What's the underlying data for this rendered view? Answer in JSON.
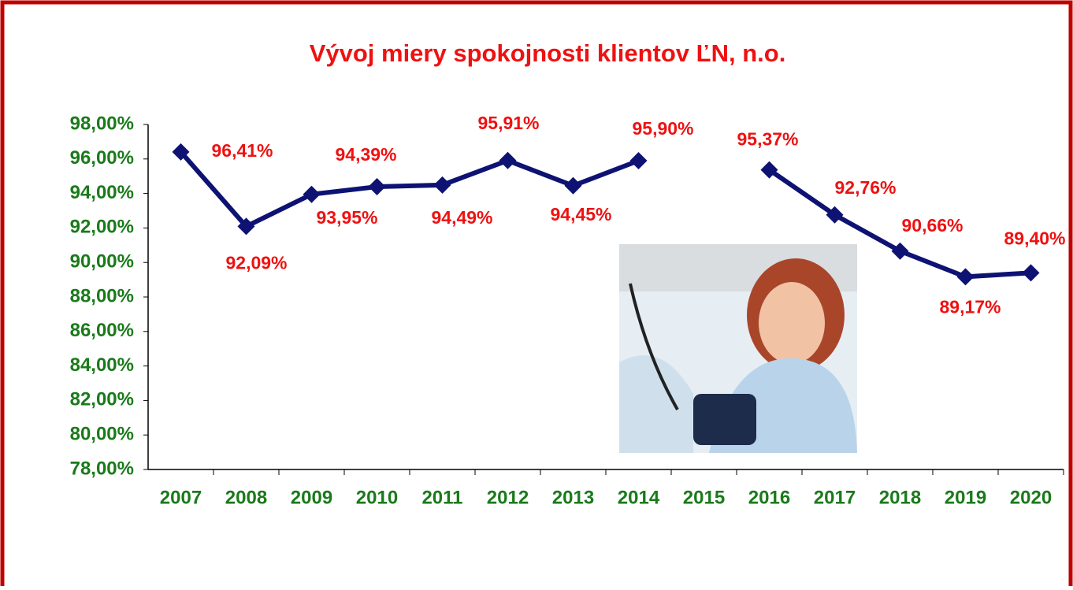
{
  "chart_data": {
    "type": "line",
    "title": "Vývoj miery spokojnosti klientov ĽN, n.o.",
    "categories": [
      "2007",
      "2008",
      "2009",
      "2010",
      "2011",
      "2012",
      "2013",
      "2014",
      "2015",
      "2016",
      "2017",
      "2018",
      "2019",
      "2020"
    ],
    "values": [
      96.41,
      92.09,
      93.95,
      94.39,
      94.49,
      95.91,
      94.45,
      95.9,
      null,
      95.37,
      92.76,
      90.66,
      89.17,
      89.4
    ],
    "value_labels": [
      "96,41%",
      "92,09%",
      "93,95%",
      "94,39%",
      "94,49%",
      "95,91%",
      "94,45%",
      "95,90%",
      null,
      "95,37%",
      "92,76%",
      "90,66%",
      "89,17%",
      "89,40%"
    ],
    "color": "#0d1273",
    "ylim": [
      78,
      98
    ],
    "yticks": [
      {
        "value": 78,
        "label": "78,00%"
      },
      {
        "value": 80,
        "label": "80,00%"
      },
      {
        "value": 82,
        "label": "82,00%"
      },
      {
        "value": 84,
        "label": "84,00%"
      },
      {
        "value": 86,
        "label": "86,00%"
      },
      {
        "value": 88,
        "label": "88,00%"
      },
      {
        "value": 90,
        "label": "90,00%"
      },
      {
        "value": 92,
        "label": "92,00%"
      },
      {
        "value": 94,
        "label": "94,00%"
      },
      {
        "value": 96,
        "label": "96,00%"
      },
      {
        "value": 98,
        "label": "98,00%"
      }
    ],
    "grid": false
  }
}
